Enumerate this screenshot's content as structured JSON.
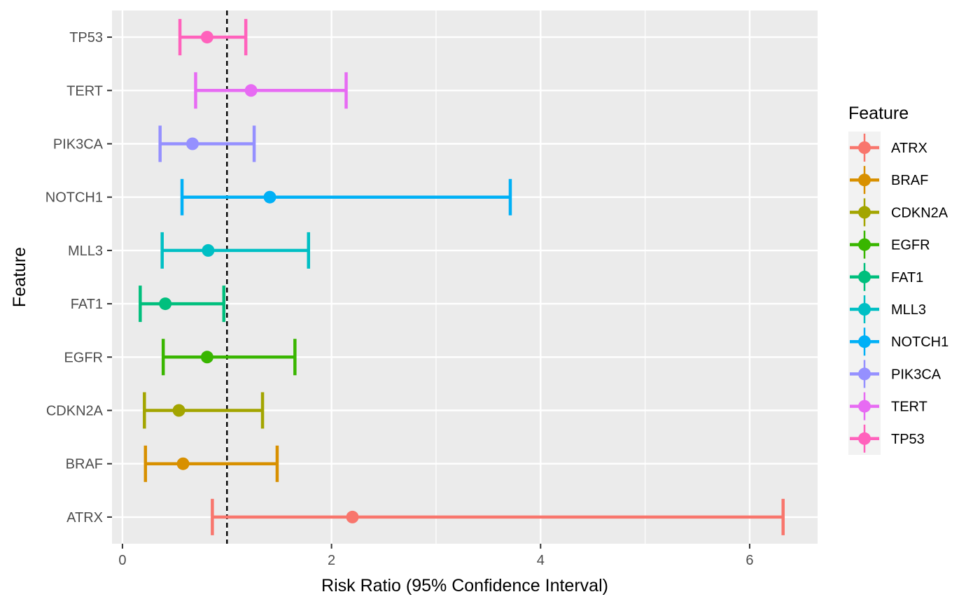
{
  "chart_data": {
    "type": "errorbar",
    "title": "",
    "xlabel": "Risk Ratio (95% Confidence Interval)",
    "ylabel": "Feature",
    "xlim": [
      -0.1,
      6.65
    ],
    "x_ticks": [
      0,
      2,
      4,
      6
    ],
    "reference_line": {
      "x": 1,
      "style": "dashed",
      "color": "#000000"
    },
    "grid": true,
    "legend": {
      "title": "Feature",
      "position": "right"
    },
    "categories": [
      "ATRX",
      "BRAF",
      "CDKN2A",
      "EGFR",
      "FAT1",
      "MLL3",
      "NOTCH1",
      "PIK3CA",
      "TERT",
      "TP53"
    ],
    "series": [
      {
        "name": "ATRX",
        "estimate": 2.2,
        "lower": 0.86,
        "upper": 6.32,
        "color": "#F8766D"
      },
      {
        "name": "BRAF",
        "estimate": 0.58,
        "lower": 0.22,
        "upper": 1.48,
        "color": "#D89000"
      },
      {
        "name": "CDKN2A",
        "estimate": 0.54,
        "lower": 0.21,
        "upper": 1.34,
        "color": "#A3A500"
      },
      {
        "name": "EGFR",
        "estimate": 0.81,
        "lower": 0.39,
        "upper": 1.65,
        "color": "#39B600"
      },
      {
        "name": "FAT1",
        "estimate": 0.41,
        "lower": 0.17,
        "upper": 0.97,
        "color": "#00BF7D"
      },
      {
        "name": "MLL3",
        "estimate": 0.82,
        "lower": 0.38,
        "upper": 1.78,
        "color": "#00BFC4"
      },
      {
        "name": "NOTCH1",
        "estimate": 1.41,
        "lower": 0.57,
        "upper": 3.71,
        "color": "#00B0F6"
      },
      {
        "name": "PIK3CA",
        "estimate": 0.67,
        "lower": 0.36,
        "upper": 1.26,
        "color": "#9590FF"
      },
      {
        "name": "TERT",
        "estimate": 1.23,
        "lower": 0.7,
        "upper": 2.14,
        "color": "#E76BF3"
      },
      {
        "name": "TP53",
        "estimate": 0.81,
        "lower": 0.55,
        "upper": 1.18,
        "color": "#FF62BC"
      }
    ]
  }
}
